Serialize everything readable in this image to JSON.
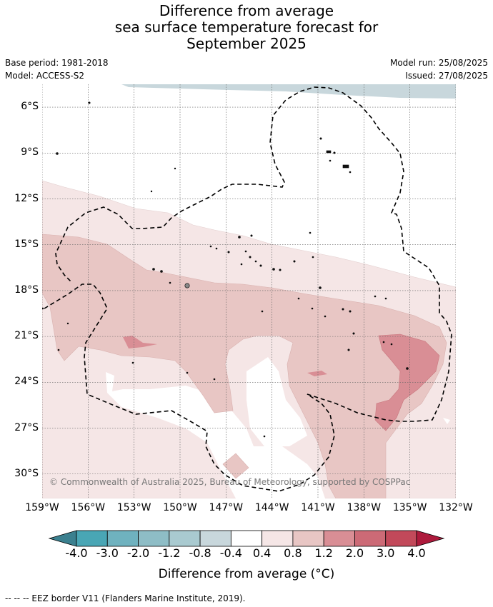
{
  "title": {
    "line1": "Difference from average",
    "line2": "sea surface temperature forecast for",
    "line3": "September 2025"
  },
  "meta": {
    "base_period": "Base period: 1981-2018",
    "model": "Model: ACCESS-S2",
    "model_run": "Model run: 25/08/2025",
    "issued": "Issued: 27/08/2025"
  },
  "map": {
    "lat_ticks": [
      "6°S",
      "9°S",
      "12°S",
      "15°S",
      "18°S",
      "21°S",
      "24°S",
      "27°S",
      "30°S"
    ],
    "lon_ticks": [
      "159°W",
      "156°W",
      "153°W",
      "150°W",
      "147°W",
      "144°W",
      "141°W",
      "138°W",
      "135°W",
      "132°W"
    ],
    "copyright": "© Commonwealth of Australia 2025, Bureau of Meteorology, supported by COSPPac",
    "extent": {
      "lon_min": -159,
      "lon_max": -132,
      "lat_min": -31.6,
      "lat_max": -4.5
    }
  },
  "colorbar": {
    "labels": [
      "-4.0",
      "-3.0",
      "-2.0",
      "-1.2",
      "-0.8",
      "-0.4",
      "0.4",
      "0.8",
      "1.2",
      "2.0",
      "3.0",
      "4.0"
    ],
    "colors": [
      "#3b808f",
      "#49a6b5",
      "#6fb2bf",
      "#8ebdc6",
      "#a9cad0",
      "#c8d7dc",
      "#ffffff",
      "#f5e6e6",
      "#e8c6c4",
      "#d98e95",
      "#cc6a76",
      "#c2495a",
      "#ad1a3c"
    ],
    "title": "Difference from average (°C)"
  },
  "footnote": "--  --  -- EEZ border V11 (Flanders Marine Institute, 2019)."
}
